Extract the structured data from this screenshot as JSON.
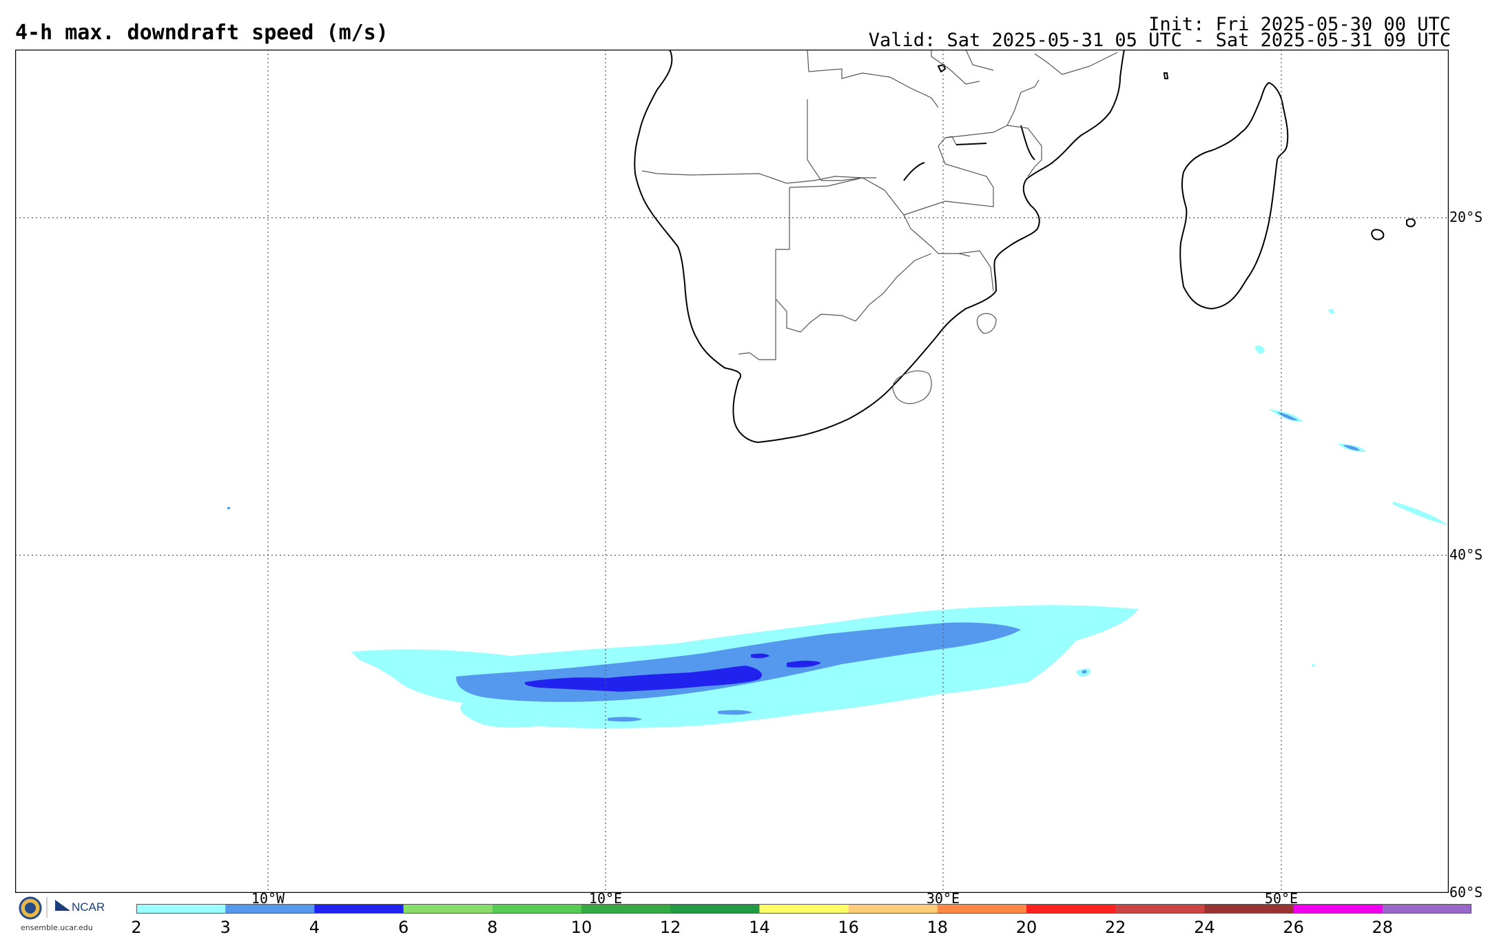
{
  "header": {
    "title": "4-h max. downdraft speed (m/s)",
    "init": "Init: Fri 2025-05-30 00 UTC",
    "valid": "Valid: Sat 2025-05-31 05 UTC - Sat 2025-05-31 09 UTC"
  },
  "map": {
    "lat_labels": [
      "20°S",
      "40°S",
      "60°S"
    ],
    "lon_labels": [
      "10°W",
      "10°E",
      "30°E",
      "50°E"
    ],
    "grid": "dotted"
  },
  "colorbar": {
    "ticks": [
      "2",
      "3",
      "4",
      "6",
      "8",
      "10",
      "12",
      "14",
      "16",
      "18",
      "20",
      "22",
      "24",
      "26",
      "28"
    ],
    "colors": [
      "#99ffff",
      "#5599ee",
      "#2222ee",
      "#88dd66",
      "#55cc55",
      "#33aa44",
      "#229944",
      "#ffff66",
      "#ffcc77",
      "#ff8844",
      "#ff2222",
      "#cc4444",
      "#993333",
      "#ee00ee",
      "#9966cc"
    ]
  },
  "logo": {
    "org": "NCAR",
    "url": "ensemble.ucar.edu"
  }
}
